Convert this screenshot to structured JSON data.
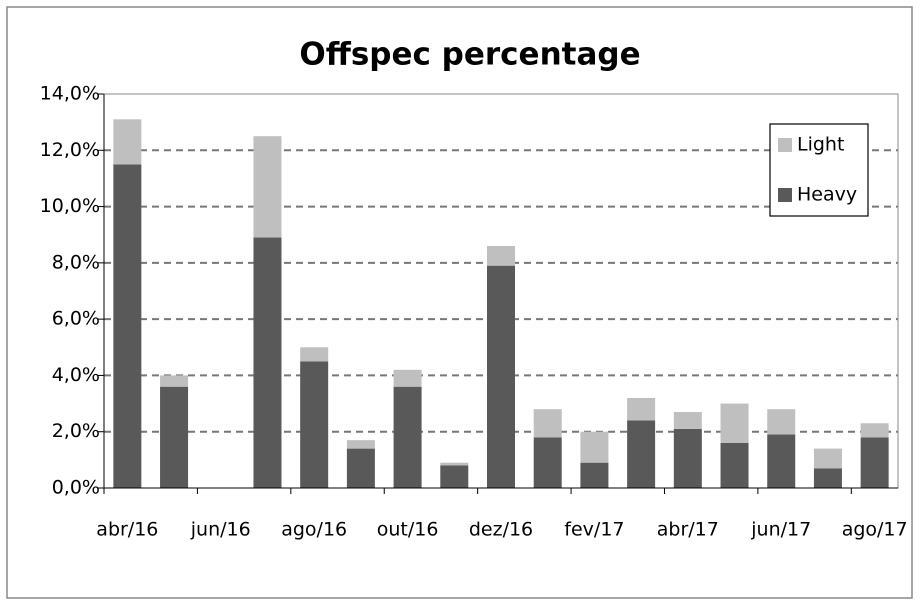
{
  "chart_data": {
    "type": "stacked_bar",
    "title": "Offspec percentage",
    "categories": [
      "abr/16",
      null,
      "jun/16",
      null,
      "ago/16",
      null,
      "out/16",
      null,
      "dez/16",
      null,
      "fev/17",
      null,
      "abr/17",
      null,
      "jun/17",
      null,
      "ago/17"
    ],
    "series": [
      {
        "name": "Heavy",
        "color": "#595959",
        "values": [
          11.5,
          3.6,
          0,
          8.9,
          4.5,
          1.4,
          3.6,
          0.8,
          7.9,
          1.8,
          0.9,
          2.4,
          2.1,
          1.6,
          1.9,
          0.7,
          1.8
        ]
      },
      {
        "name": "Light",
        "color": "#bfbfbf",
        "values": [
          1.6,
          0.4,
          0,
          3.6,
          0.5,
          0.3,
          0.6,
          0.1,
          0.7,
          1.0,
          1.1,
          0.8,
          0.6,
          1.4,
          0.9,
          0.7,
          0.5
        ]
      }
    ],
    "ylim": [
      0,
      14
    ],
    "yticks": [
      {
        "value": 0,
        "label": "0,0%"
      },
      {
        "value": 2,
        "label": "2,0%"
      },
      {
        "value": 4,
        "label": "4,0%"
      },
      {
        "value": 6,
        "label": "6,0%"
      },
      {
        "value": 8,
        "label": "8,0%"
      },
      {
        "value": 10,
        "label": "10,0%"
      },
      {
        "value": 12,
        "label": "12,0%"
      },
      {
        "value": 14,
        "label": "14,0%"
      }
    ],
    "grid": true,
    "legend": "top-right"
  }
}
